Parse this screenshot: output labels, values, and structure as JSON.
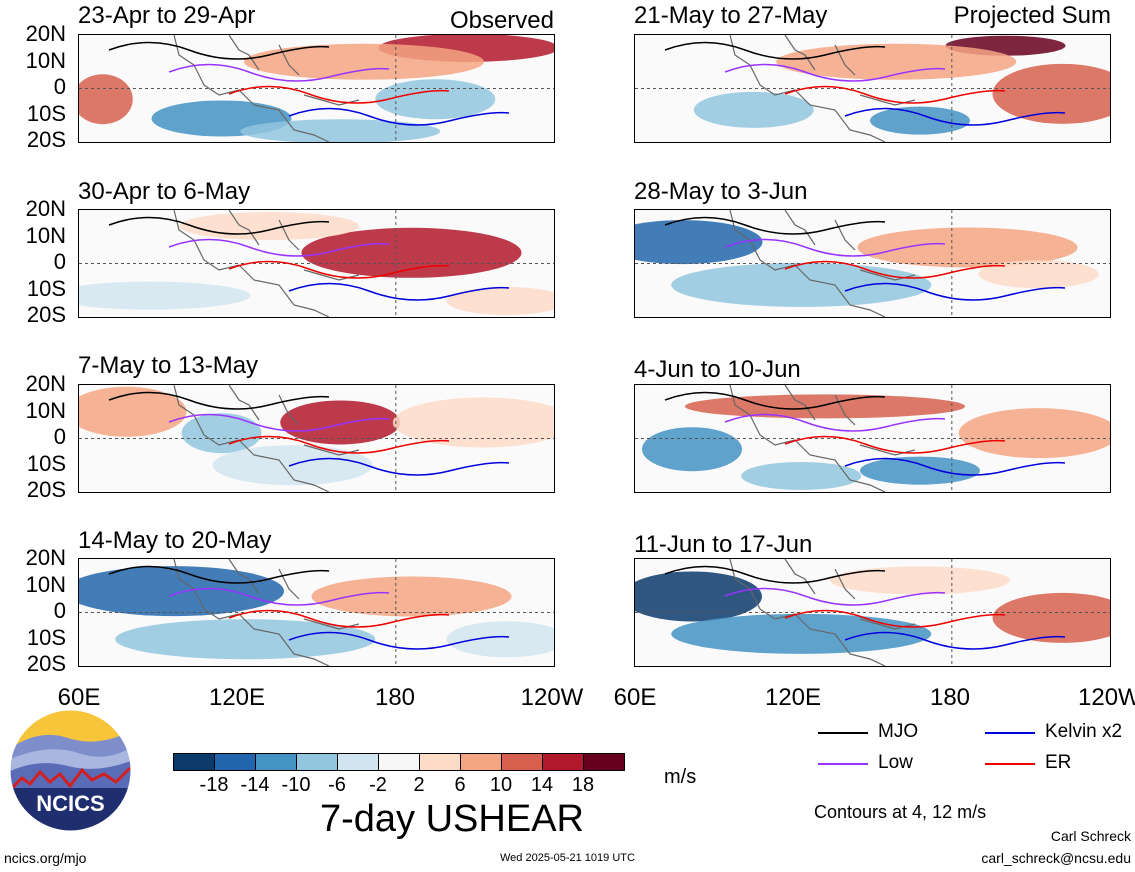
{
  "panels": {
    "left": [
      {
        "title": "23-Apr to 29-Apr",
        "tag": "Observed"
      },
      {
        "title": "30-Apr to 6-May",
        "tag": ""
      },
      {
        "title": "7-May to 13-May",
        "tag": ""
      },
      {
        "title": "14-May to 20-May",
        "tag": ""
      }
    ],
    "right": [
      {
        "title": "21-May to 27-May",
        "tag": "Projected Sum"
      },
      {
        "title": "28-May to 3-Jun",
        "tag": ""
      },
      {
        "title": "4-Jun to 10-Jun",
        "tag": ""
      },
      {
        "title": "11-Jun to 17-Jun",
        "tag": ""
      }
    ]
  },
  "lat_labels": [
    "20N",
    "10N",
    "0",
    "10S",
    "20S"
  ],
  "lon_labels": [
    "60E",
    "120E",
    "180",
    "120W"
  ],
  "colorbar": {
    "ticks": [
      "-18",
      "-14",
      "-10",
      "-6",
      "-2",
      "2",
      "6",
      "10",
      "14",
      "18"
    ],
    "colors": [
      "#0b3a6b",
      "#2166ac",
      "#4393c3",
      "#92c5de",
      "#d1e5f0",
      "#f7f7f7",
      "#fddbc7",
      "#f4a582",
      "#d6604d",
      "#b2182b",
      "#67001f"
    ],
    "units": "m/s"
  },
  "main_title": "7-day USHEAR",
  "legend": {
    "items": [
      {
        "label": "MJO",
        "color": "#000000"
      },
      {
        "label": "Kelvin x2",
        "color": "#0000dd"
      },
      {
        "label": "Low",
        "color": "#9933ff"
      },
      {
        "label": "ER",
        "color": "#ee0000"
      }
    ],
    "contours_note": "Contours at 4, 12 m/s"
  },
  "logo": {
    "text": "NCICS"
  },
  "footer": {
    "url": "ncics.org/mjo",
    "timestamp": "Wed 2025-05-21 1019 UTC",
    "author": "Carl Schreck",
    "email": "carl_schreck@ncsu.edu"
  }
}
